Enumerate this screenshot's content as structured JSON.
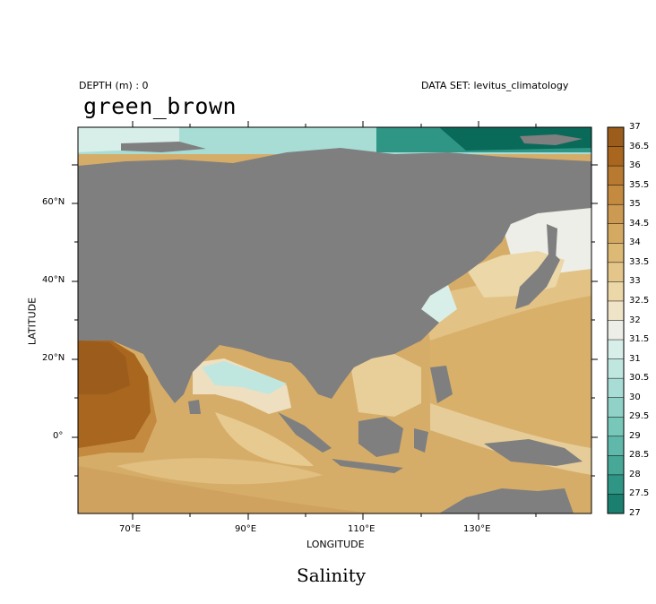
{
  "header": {
    "depth_label": "DEPTH (m) : 0",
    "dataset_label": "DATA SET: levitus_climatology",
    "palette_title": "green_brown"
  },
  "axes": {
    "xlabel": "LONGITUDE",
    "ylabel": "LATITUDE",
    "xticks": [
      "70°E",
      "90°E",
      "110°E",
      "130°E"
    ],
    "yticks": [
      "60°N",
      "40°N",
      "20°N",
      "0°"
    ]
  },
  "colorbar": {
    "levels": [
      "37",
      "36.5",
      "36",
      "35.5",
      "35",
      "34.5",
      "34",
      "33.5",
      "33",
      "32.5",
      "32",
      "31.5",
      "31",
      "30.5",
      "30",
      "29.5",
      "29",
      "28.5",
      "28",
      "27.5",
      "27"
    ],
    "colors": [
      "#9b5c1c",
      "#a8661f",
      "#b87a30",
      "#c48a40",
      "#cc9a52",
      "#d4aa63",
      "#dcba75",
      "#e4c68a",
      "#ecd7a8",
      "#f0e4c8",
      "#eeeee8",
      "#d8eee8",
      "#c0e6e0",
      "#a8ddd6",
      "#90d2c8",
      "#78c8ba",
      "#5fb8aa",
      "#48a898",
      "#2f9585",
      "#1a7f6f",
      "#0a6a5a"
    ]
  },
  "land_color": "#7f7f7f",
  "caption": "Salinity"
}
